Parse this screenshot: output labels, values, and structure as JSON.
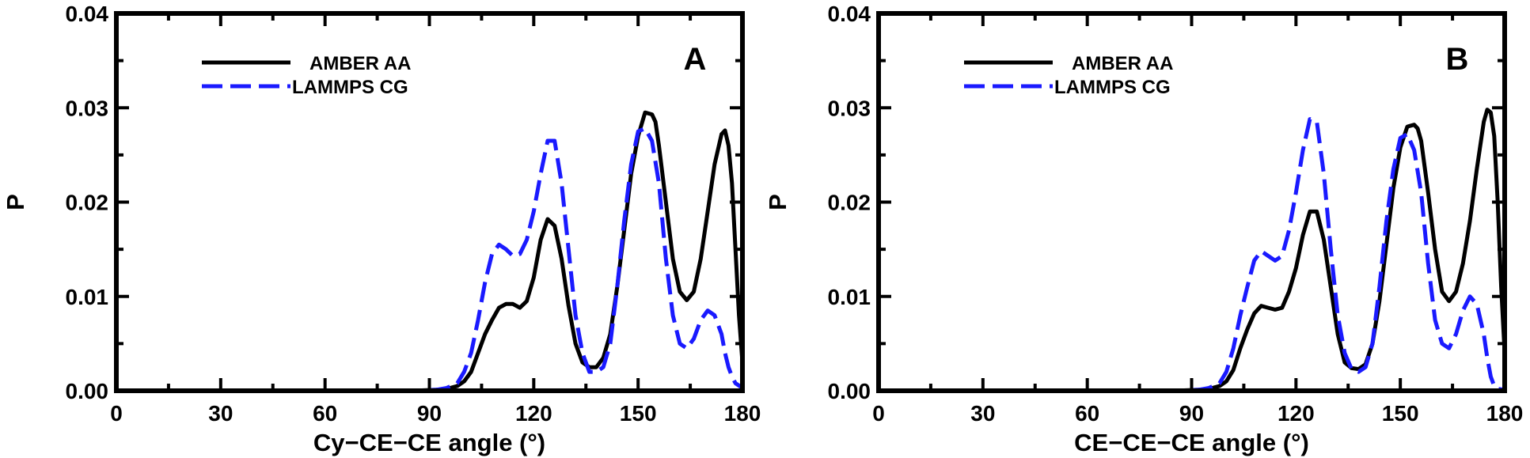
{
  "chart_data": [
    {
      "type": "line",
      "panel_label": "A",
      "title": "",
      "xlabel": "Cy−CE−CE angle (°)",
      "ylabel": "P",
      "xlim": [
        0,
        180
      ],
      "ylim": [
        0,
        0.04
      ],
      "xticks": [
        0,
        30,
        60,
        90,
        120,
        150,
        180
      ],
      "yticks": [
        0.0,
        0.01,
        0.02,
        0.03,
        0.04
      ],
      "xtick_labels": [
        "0",
        "30",
        "60",
        "90",
        "120",
        "150",
        "180"
      ],
      "ytick_labels": [
        "0.00",
        "0.01",
        "0.02",
        "0.03",
        "0.04"
      ],
      "grid": false,
      "legend_position": "top-left",
      "series": [
        {
          "name": "AMBER AA",
          "color": "#000000",
          "style": "solid",
          "x": [
            0,
            85,
            92,
            95,
            98,
            100,
            102,
            104,
            106,
            108,
            110,
            112,
            114,
            116,
            118,
            120,
            122,
            124,
            126,
            128,
            130,
            132,
            134,
            136,
            138,
            140,
            142,
            144,
            146,
            148,
            150,
            152,
            154,
            155,
            156,
            158,
            160,
            162,
            164,
            166,
            168,
            170,
            172,
            174,
            175,
            176,
            177,
            178,
            179,
            180
          ],
          "y": [
            0.0,
            0.0,
            0.0001,
            0.0002,
            0.0005,
            0.001,
            0.002,
            0.004,
            0.006,
            0.0075,
            0.0088,
            0.0092,
            0.0092,
            0.0088,
            0.0095,
            0.012,
            0.016,
            0.0182,
            0.0175,
            0.014,
            0.009,
            0.005,
            0.003,
            0.0025,
            0.0025,
            0.0035,
            0.006,
            0.011,
            0.017,
            0.023,
            0.027,
            0.0295,
            0.0293,
            0.0285,
            0.026,
            0.02,
            0.014,
            0.0105,
            0.0096,
            0.0105,
            0.014,
            0.019,
            0.024,
            0.0272,
            0.0276,
            0.026,
            0.022,
            0.015,
            0.008,
            0.003
          ]
        },
        {
          "name": "LAMMPS CG",
          "color": "#1a1aff",
          "style": "dashed",
          "x": [
            0,
            85,
            92,
            95,
            98,
            100,
            102,
            104,
            106,
            108,
            110,
            112,
            114,
            116,
            118,
            120,
            122,
            124,
            126,
            128,
            130,
            132,
            134,
            136,
            138,
            140,
            142,
            144,
            146,
            148,
            150,
            152,
            154,
            156,
            158,
            160,
            162,
            164,
            166,
            168,
            170,
            172,
            174,
            175,
            176,
            177,
            178,
            180
          ],
          "y": [
            0.0,
            0.0,
            0.0001,
            0.0003,
            0.0008,
            0.002,
            0.004,
            0.0075,
            0.0115,
            0.0145,
            0.0155,
            0.015,
            0.0143,
            0.0145,
            0.016,
            0.019,
            0.023,
            0.0265,
            0.0265,
            0.022,
            0.015,
            0.008,
            0.004,
            0.002,
            0.002,
            0.0025,
            0.005,
            0.011,
            0.018,
            0.024,
            0.0275,
            0.0278,
            0.0265,
            0.022,
            0.014,
            0.008,
            0.005,
            0.0045,
            0.0055,
            0.0075,
            0.0085,
            0.008,
            0.006,
            0.004,
            0.0025,
            0.0015,
            0.0008,
            0.0003
          ]
        }
      ]
    },
    {
      "type": "line",
      "panel_label": "B",
      "title": "",
      "xlabel": "CE−CE−CE angle (°)",
      "ylabel": "P",
      "xlim": [
        0,
        180
      ],
      "ylim": [
        0,
        0.04
      ],
      "xticks": [
        0,
        30,
        60,
        90,
        120,
        150,
        180
      ],
      "yticks": [
        0.0,
        0.01,
        0.02,
        0.03,
        0.04
      ],
      "xtick_labels": [
        "0",
        "30",
        "60",
        "90",
        "120",
        "150",
        "180"
      ],
      "ytick_labels": [
        "0.00",
        "0.01",
        "0.02",
        "0.03",
        "0.04"
      ],
      "grid": false,
      "legend_position": "top-left",
      "series": [
        {
          "name": "AMBER AA",
          "color": "#000000",
          "style": "solid",
          "x": [
            0,
            85,
            92,
            95,
            98,
            100,
            102,
            104,
            106,
            108,
            110,
            112,
            114,
            116,
            118,
            120,
            122,
            124,
            126,
            128,
            130,
            132,
            134,
            136,
            138,
            140,
            142,
            144,
            146,
            148,
            150,
            152,
            154,
            155,
            156,
            158,
            160,
            162,
            164,
            166,
            168,
            170,
            172,
            174,
            175,
            176,
            177,
            178,
            179,
            180
          ],
          "y": [
            0.0,
            0.0,
            0.0001,
            0.0002,
            0.0005,
            0.001,
            0.0022,
            0.0045,
            0.0065,
            0.0082,
            0.009,
            0.0088,
            0.0086,
            0.0088,
            0.0105,
            0.013,
            0.0165,
            0.019,
            0.019,
            0.016,
            0.011,
            0.006,
            0.003,
            0.0024,
            0.0023,
            0.0028,
            0.005,
            0.0095,
            0.0155,
            0.0215,
            0.0258,
            0.028,
            0.0282,
            0.0278,
            0.0265,
            0.021,
            0.015,
            0.0105,
            0.0095,
            0.0105,
            0.0135,
            0.018,
            0.0235,
            0.0285,
            0.0298,
            0.0295,
            0.027,
            0.02,
            0.011,
            0.004
          ]
        },
        {
          "name": "LAMMPS CG",
          "color": "#1a1aff",
          "style": "dashed",
          "x": [
            0,
            85,
            92,
            95,
            98,
            100,
            102,
            104,
            106,
            108,
            110,
            112,
            114,
            116,
            118,
            120,
            122,
            124,
            126,
            128,
            130,
            132,
            134,
            136,
            138,
            140,
            142,
            144,
            146,
            148,
            150,
            152,
            154,
            156,
            158,
            160,
            162,
            164,
            166,
            168,
            170,
            172,
            174,
            175,
            176,
            177,
            178,
            180
          ],
          "y": [
            0.0,
            0.0,
            0.0001,
            0.0003,
            0.0008,
            0.002,
            0.0045,
            0.008,
            0.011,
            0.0138,
            0.0148,
            0.0143,
            0.0138,
            0.0143,
            0.017,
            0.021,
            0.0255,
            0.0288,
            0.0285,
            0.023,
            0.015,
            0.008,
            0.004,
            0.0023,
            0.002,
            0.0025,
            0.005,
            0.011,
            0.018,
            0.0235,
            0.0268,
            0.0272,
            0.0255,
            0.021,
            0.0135,
            0.0075,
            0.005,
            0.0045,
            0.006,
            0.0085,
            0.01,
            0.0092,
            0.006,
            0.0035,
            0.0015,
            0.0005,
            0.0002,
            0.0001
          ]
        }
      ]
    }
  ]
}
